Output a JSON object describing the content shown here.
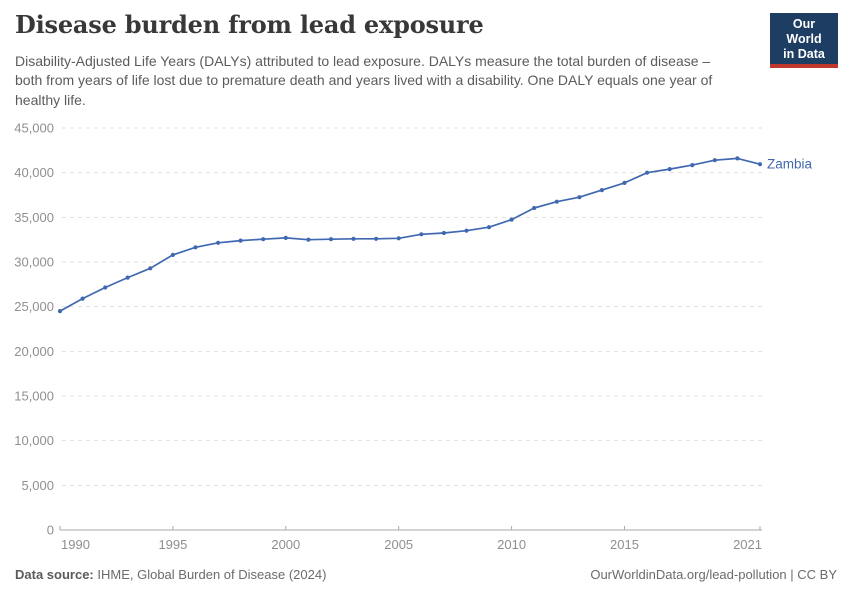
{
  "header": {
    "title": "Disease burden from lead exposure",
    "subtitle": "Disability-Adjusted Life Years (DALYs) attributed to lead exposure. DALYs measure the total burden of disease – both from years of life lost due to premature death and years lived with a disability. One DALY equals one year of healthy life.",
    "logo": {
      "line1": "Our World",
      "line2": "in Data",
      "bg_color": "#1d3d63",
      "stripe_color": "#c0372b"
    }
  },
  "chart_data": {
    "type": "line",
    "title": "Disease burden from lead exposure",
    "xlabel": "",
    "ylabel": "",
    "xlim": [
      1990,
      2021
    ],
    "ylim": [
      0,
      45000
    ],
    "x_ticks": [
      1990,
      1995,
      2000,
      2005,
      2010,
      2015,
      2021
    ],
    "y_ticks": [
      0,
      5000,
      10000,
      15000,
      20000,
      25000,
      30000,
      35000,
      40000,
      45000
    ],
    "grid": "horizontal-dashed",
    "legend_position": "end-of-line-label",
    "series": [
      {
        "name": "Zambia",
        "color": "#4068b0",
        "x": [
          1990,
          1991,
          1992,
          1993,
          1994,
          1995,
          1996,
          1997,
          1998,
          1999,
          2000,
          2001,
          2002,
          2003,
          2004,
          2005,
          2006,
          2007,
          2008,
          2009,
          2010,
          2011,
          2012,
          2013,
          2014,
          2015,
          2016,
          2017,
          2018,
          2019,
          2020,
          2021
        ],
        "values": [
          24500,
          25900,
          27150,
          28250,
          29300,
          30800,
          31650,
          32150,
          32400,
          32550,
          32700,
          32500,
          32550,
          32600,
          32600,
          32650,
          33100,
          33250,
          33500,
          33900,
          34750,
          36050,
          36750,
          37250,
          38050,
          38850,
          40000,
          40400,
          40850,
          41400,
          41600,
          40950
        ]
      }
    ]
  },
  "footer": {
    "source_label": "Data source:",
    "source_value": " IHME, Global Burden of Disease (2024)",
    "link": "OurWorldinData.org/lead-pollution",
    "license": " | CC BY"
  }
}
